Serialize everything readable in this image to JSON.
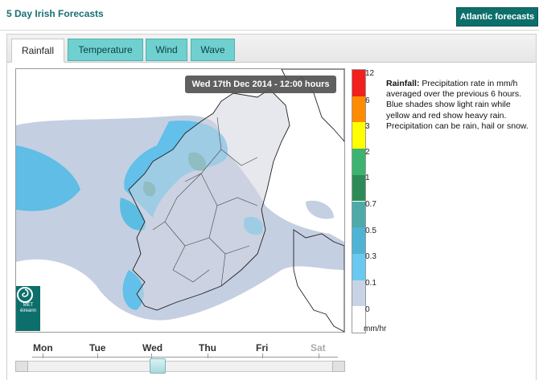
{
  "header": {
    "title": "5 Day Irish Forecasts",
    "atlantic_button": "Atlantic forecasts"
  },
  "tabs": [
    {
      "label": "Rainfall",
      "active": true
    },
    {
      "label": "Temperature",
      "active": false
    },
    {
      "label": "Wind",
      "active": false
    },
    {
      "label": "Wave",
      "active": false
    }
  ],
  "map": {
    "datetime": "Wed 17th Dec 2014 - 12:00 hours",
    "logo_text": "MET éireann"
  },
  "legend": {
    "values": [
      "12",
      "6",
      "3",
      "2",
      "1",
      "0.7",
      "0.5",
      "0.3",
      "0.1",
      "0"
    ],
    "unit": "mm/hr",
    "colors": [
      "#f21f1f",
      "#ff8c00",
      "#ffff00",
      "#3cb371",
      "#2e8b57",
      "#4ea9a9",
      "#4fb3d4",
      "#6bc8f0",
      "#c9d3e6",
      "#ffffff"
    ]
  },
  "description": {
    "heading": "Rainfall:",
    "text": "Precipitation rate in mm/h averaged over the previous 6 hours. Blue shades show light rain while yellow and red show heavy rain. Precipitation can be rain, hail or snow."
  },
  "timeline": {
    "days": [
      "Mon",
      "Tue",
      "Wed",
      "Thu",
      "Fri",
      "Sat"
    ],
    "selected": "Wed"
  }
}
